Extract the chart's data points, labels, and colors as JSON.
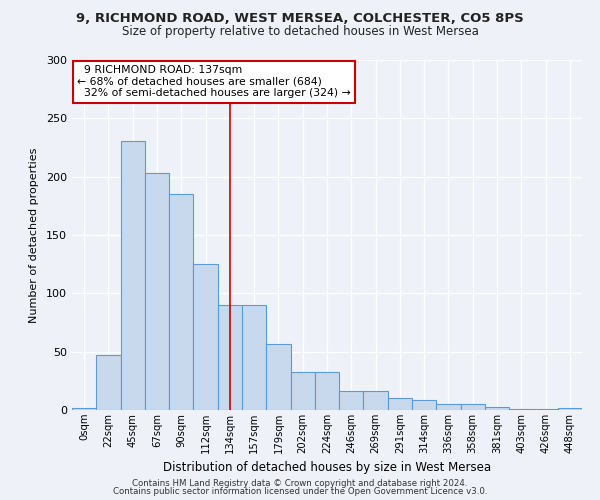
{
  "title_line1": "9, RICHMOND ROAD, WEST MERSEA, COLCHESTER, CO5 8PS",
  "title_line2": "Size of property relative to detached houses in West Mersea",
  "xlabel": "Distribution of detached houses by size in West Mersea",
  "ylabel": "Number of detached properties",
  "bar_labels": [
    "0sqm",
    "22sqm",
    "45sqm",
    "67sqm",
    "90sqm",
    "112sqm",
    "134sqm",
    "157sqm",
    "179sqm",
    "202sqm",
    "224sqm",
    "246sqm",
    "269sqm",
    "291sqm",
    "314sqm",
    "336sqm",
    "358sqm",
    "381sqm",
    "403sqm",
    "426sqm",
    "448sqm"
  ],
  "bar_values": [
    2,
    47,
    231,
    203,
    185,
    125,
    90,
    90,
    57,
    33,
    33,
    16,
    16,
    10,
    9,
    5,
    5,
    3,
    1,
    1,
    2
  ],
  "bar_color": "#c9d9ed",
  "bar_edge_color": "#5b9bd5",
  "vline_x": 6.0,
  "vline_color": "#cc0000",
  "annotation_text": "  9 RICHMOND ROAD: 137sqm\n← 68% of detached houses are smaller (684)\n  32% of semi-detached houses are larger (324) →",
  "annotation_box_color": "#ffffff",
  "annotation_box_edge": "#cc0000",
  "ylim": [
    0,
    300
  ],
  "yticks": [
    0,
    50,
    100,
    150,
    200,
    250,
    300
  ],
  "footer_line1": "Contains HM Land Registry data © Crown copyright and database right 2024.",
  "footer_line2": "Contains public sector information licensed under the Open Government Licence v3.0.",
  "bg_color": "#eef2f8",
  "plot_bg_color": "#eef2f8",
  "grid_color": "#ffffff"
}
